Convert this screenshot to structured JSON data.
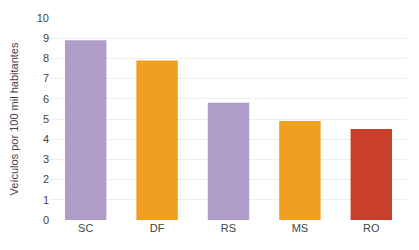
{
  "chart_data": {
    "type": "bar",
    "categories": [
      "SC",
      "DF",
      "RS",
      "MS",
      "RO"
    ],
    "values": [
      8.9,
      7.9,
      5.8,
      4.9,
      4.5
    ],
    "colors": [
      "#b09cc8",
      "#f0a020",
      "#b09cc8",
      "#f0a020",
      "#c8402a"
    ],
    "ylabel": "Veículos por 100 mil habitantes",
    "ylim": [
      0,
      10
    ],
    "yticks": [
      0,
      1,
      2,
      3,
      4,
      5,
      6,
      7,
      8,
      9,
      10
    ],
    "grid": true
  }
}
